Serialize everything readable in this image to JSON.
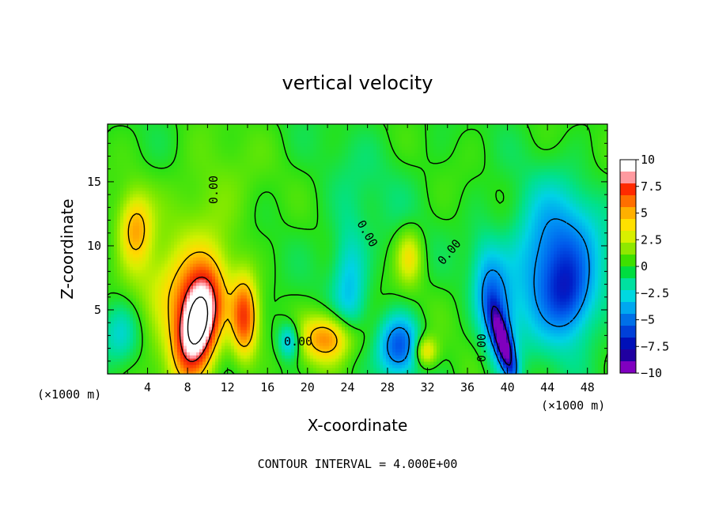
{
  "chart_data": {
    "type": "heatmap",
    "title": "vertical velocity",
    "xlabel": "X-coordinate",
    "ylabel": "Z-coordinate",
    "x_unit": "(×1000 m)",
    "footer": "CONTOUR INTERVAL = 4.000E+00",
    "xlim": [
      0,
      50
    ],
    "ylim": [
      0,
      19.5
    ],
    "x_ticks": [
      4,
      8,
      12,
      16,
      20,
      24,
      28,
      32,
      36,
      40,
      44,
      48
    ],
    "y_ticks": [
      5,
      10,
      15
    ],
    "colorbar": {
      "min": -10,
      "max": 10,
      "labels": [
        "10",
        "7.5",
        "5",
        "2.5",
        "0",
        "−2.5",
        "−5",
        "−7.5",
        "−10"
      ],
      "values": [
        10,
        7.5,
        5,
        2.5,
        0,
        -2.5,
        -5,
        -7.5,
        -10
      ],
      "colors": [
        "#ffffff",
        "#ff9aa0",
        "#ff2a00",
        "#ff6f00",
        "#ffb000",
        "#ffe000",
        "#d8f000",
        "#90e800",
        "#3ee000",
        "#00dd40",
        "#00e0a0",
        "#00d8e0",
        "#00a8f0",
        "#0070e8",
        "#0040d8",
        "#0010b8",
        "#2000a0",
        "#8000c0"
      ]
    },
    "contour_interval": 4,
    "contour_label": "0.00",
    "features": [
      {
        "x": 9.0,
        "z": 3.8,
        "w": 11.5,
        "sx": 1.3,
        "sy": 2.6,
        "rot": -0.25
      },
      {
        "x": 8.5,
        "z": 5.5,
        "w": 4.0,
        "sx": 2.5,
        "sy": 3.5,
        "rot": -0.2
      },
      {
        "x": 13.7,
        "z": 4.4,
        "w": 6.5,
        "sx": 0.9,
        "sy": 2.2,
        "rot": 0
      },
      {
        "x": 2.8,
        "z": 11.3,
        "w": 4.6,
        "sx": 1.2,
        "sy": 2.0,
        "rot": 0
      },
      {
        "x": 22.0,
        "z": 2.8,
        "w": 5.6,
        "sx": 2.0,
        "sy": 1.3,
        "rot": 0
      },
      {
        "x": 31.8,
        "z": 1.8,
        "w": 4.0,
        "sx": 0.8,
        "sy": 0.8,
        "rot": 0
      },
      {
        "x": 30.2,
        "z": 9.2,
        "w": 3.2,
        "sx": 0.9,
        "sy": 1.5,
        "rot": 0
      },
      {
        "x": 5.0,
        "z": 7.0,
        "w": 1.5,
        "sx": 3.0,
        "sy": 2.0,
        "rot": 0
      },
      {
        "x": 29.2,
        "z": 2.2,
        "w": -5.5,
        "sx": 1.4,
        "sy": 1.6,
        "rot": 0
      },
      {
        "x": 18.2,
        "z": 2.6,
        "w": -4.0,
        "sx": 0.8,
        "sy": 1.0,
        "rot": 0
      },
      {
        "x": 39.6,
        "z": 2.4,
        "w": -9.0,
        "sx": 0.5,
        "sy": 1.9,
        "rot": 0.35
      },
      {
        "x": 38.8,
        "z": 5.0,
        "w": -5.0,
        "sx": 1.2,
        "sy": 3.5,
        "rot": 0.2
      },
      {
        "x": 45.0,
        "z": 8.5,
        "w": -5.8,
        "sx": 3.0,
        "sy": 3.8,
        "rot": 0
      },
      {
        "x": 46.0,
        "z": 6.0,
        "w": -2.8,
        "sx": 1.5,
        "sy": 2.0,
        "rot": 0
      },
      {
        "x": 24.2,
        "z": 7.0,
        "w": -2.8,
        "sx": 1.2,
        "sy": 3.5,
        "rot": 0
      },
      {
        "x": 1.2,
        "z": 3.0,
        "w": -2.5,
        "sx": 1.5,
        "sy": 1.8,
        "rot": 0
      },
      {
        "x": 26.0,
        "z": 14.0,
        "w": -0.6,
        "sx": 4.0,
        "sy": 4.0,
        "rot": 0
      },
      {
        "x": 10.5,
        "z": 14.0,
        "w": 1.2,
        "sx": 3.0,
        "sy": 3.0,
        "rot": 0
      }
    ]
  }
}
